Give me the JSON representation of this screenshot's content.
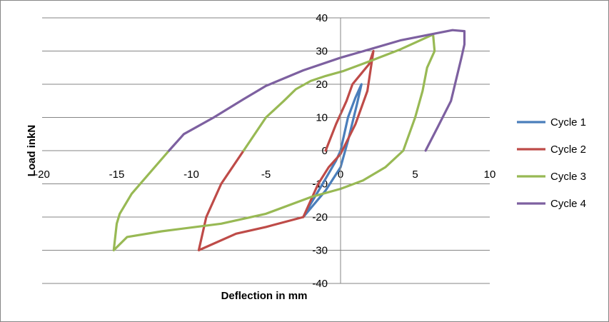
{
  "chart_data": {
    "type": "line",
    "title": "",
    "xlabel": "Deflection in mm",
    "ylabel": "Load inkN",
    "xlim": [
      -20,
      10
    ],
    "ylim": [
      -40,
      40
    ],
    "x_ticks": [
      -20,
      -15,
      -10,
      -5,
      0,
      5,
      10
    ],
    "y_ticks": [
      -40,
      -30,
      -20,
      -10,
      0,
      10,
      20,
      30,
      40
    ],
    "grid": "horizontal",
    "legend": "right",
    "series": [
      {
        "name": "Cycle 1",
        "color": "#4a7ebb",
        "points": [
          [
            0,
            0
          ],
          [
            0.5,
            10
          ],
          [
            1,
            16
          ],
          [
            1.4,
            20
          ],
          [
            1.1,
            14
          ],
          [
            0.5,
            3
          ],
          [
            0,
            -5
          ],
          [
            -1,
            -12
          ],
          [
            -2.5,
            -20
          ],
          [
            -2,
            -16
          ],
          [
            -1.2,
            -10
          ],
          [
            -0.3,
            -3
          ],
          [
            0,
            0
          ]
        ]
      },
      {
        "name": "Cycle 2",
        "color": "#be4b48",
        "points": [
          [
            -6.5,
            0
          ],
          [
            -8,
            -10
          ],
          [
            -9,
            -20
          ],
          [
            -9.5,
            -30
          ],
          [
            -7,
            -25
          ],
          [
            -5,
            -23
          ],
          [
            -2.5,
            -20
          ],
          [
            -2.2,
            -17
          ],
          [
            -1.5,
            -10
          ],
          [
            -0.8,
            -5
          ],
          [
            0,
            -1
          ],
          [
            1,
            8
          ],
          [
            1.8,
            18
          ],
          [
            2.2,
            30
          ],
          [
            1.9,
            26
          ],
          [
            0.8,
            20
          ],
          [
            0.4,
            15
          ],
          [
            -0.3,
            8
          ],
          [
            -1,
            0
          ]
        ]
      },
      {
        "name": "Cycle 3",
        "color": "#98b954",
        "points": [
          [
            -11.5,
            0
          ],
          [
            -14,
            -13
          ],
          [
            -14.8,
            -19
          ],
          [
            -15,
            -22
          ],
          [
            -15.2,
            -30
          ],
          [
            -14.3,
            -26
          ],
          [
            -12,
            -24.3
          ],
          [
            -8,
            -22
          ],
          [
            -5,
            -19
          ],
          [
            -2,
            -14
          ],
          [
            0,
            -11.5
          ],
          [
            1.5,
            -9
          ],
          [
            3,
            -5
          ],
          [
            4.2,
            0
          ],
          [
            5,
            10
          ],
          [
            5.5,
            18
          ],
          [
            5.8,
            25
          ],
          [
            6.3,
            30
          ],
          [
            6.2,
            35
          ],
          [
            4,
            30.5
          ],
          [
            2,
            27
          ],
          [
            0.2,
            24
          ],
          [
            -1,
            22.5
          ],
          [
            -2,
            21
          ],
          [
            -3,
            18.5
          ],
          [
            -3.8,
            15
          ],
          [
            -5,
            10
          ],
          [
            -6.5,
            0
          ]
        ]
      },
      {
        "name": "Cycle 4",
        "color": "#7d60a0",
        "points": [
          [
            5.7,
            0
          ],
          [
            6.5,
            7
          ],
          [
            7.4,
            15
          ],
          [
            8.1,
            28
          ],
          [
            8.3,
            32
          ],
          [
            8.3,
            36
          ],
          [
            7.5,
            36.3
          ],
          [
            6,
            35
          ],
          [
            4,
            33.2
          ],
          [
            2.1,
            30.7
          ],
          [
            0,
            28
          ],
          [
            -2.5,
            24.2
          ],
          [
            -5,
            19.5
          ],
          [
            -6.5,
            15.5
          ],
          [
            -8.5,
            10
          ],
          [
            -10.5,
            5
          ],
          [
            -11.5,
            0
          ]
        ]
      }
    ]
  }
}
